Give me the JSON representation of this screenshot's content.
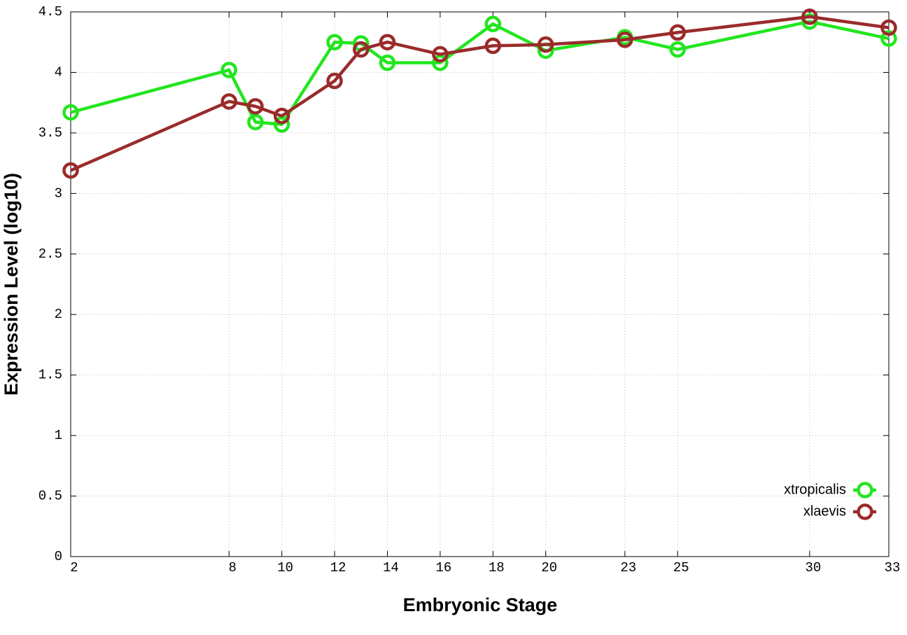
{
  "chart_data": {
    "type": "line",
    "xlabel": "Embryonic Stage",
    "ylabel": "Expression Level (log10)",
    "x": [
      2,
      8,
      9,
      10,
      12,
      13,
      14,
      16,
      18,
      20,
      23,
      25,
      30,
      33
    ],
    "series": [
      {
        "name": "xtropicalis",
        "color": "#22e61e",
        "values": [
          3.67,
          4.02,
          3.59,
          3.57,
          4.25,
          4.24,
          4.08,
          4.08,
          4.4,
          4.18,
          4.29,
          4.19,
          4.42,
          4.28
        ]
      },
      {
        "name": "xlaevis",
        "color": "#9a2b2b",
        "values": [
          3.19,
          3.76,
          3.72,
          3.64,
          3.93,
          4.19,
          4.25,
          4.15,
          4.22,
          4.23,
          4.27,
          4.33,
          4.46,
          4.37
        ]
      }
    ],
    "xlim": [
      2,
      33
    ],
    "xticks": [
      2,
      8,
      10,
      12,
      14,
      16,
      18,
      20,
      23,
      25,
      30,
      33
    ],
    "ylim": [
      0,
      4.5
    ],
    "yticks": [
      0,
      0.5,
      1,
      1.5,
      2,
      2.5,
      3,
      3.5,
      4,
      4.5
    ],
    "grid": true,
    "legend": "bottom-right"
  }
}
